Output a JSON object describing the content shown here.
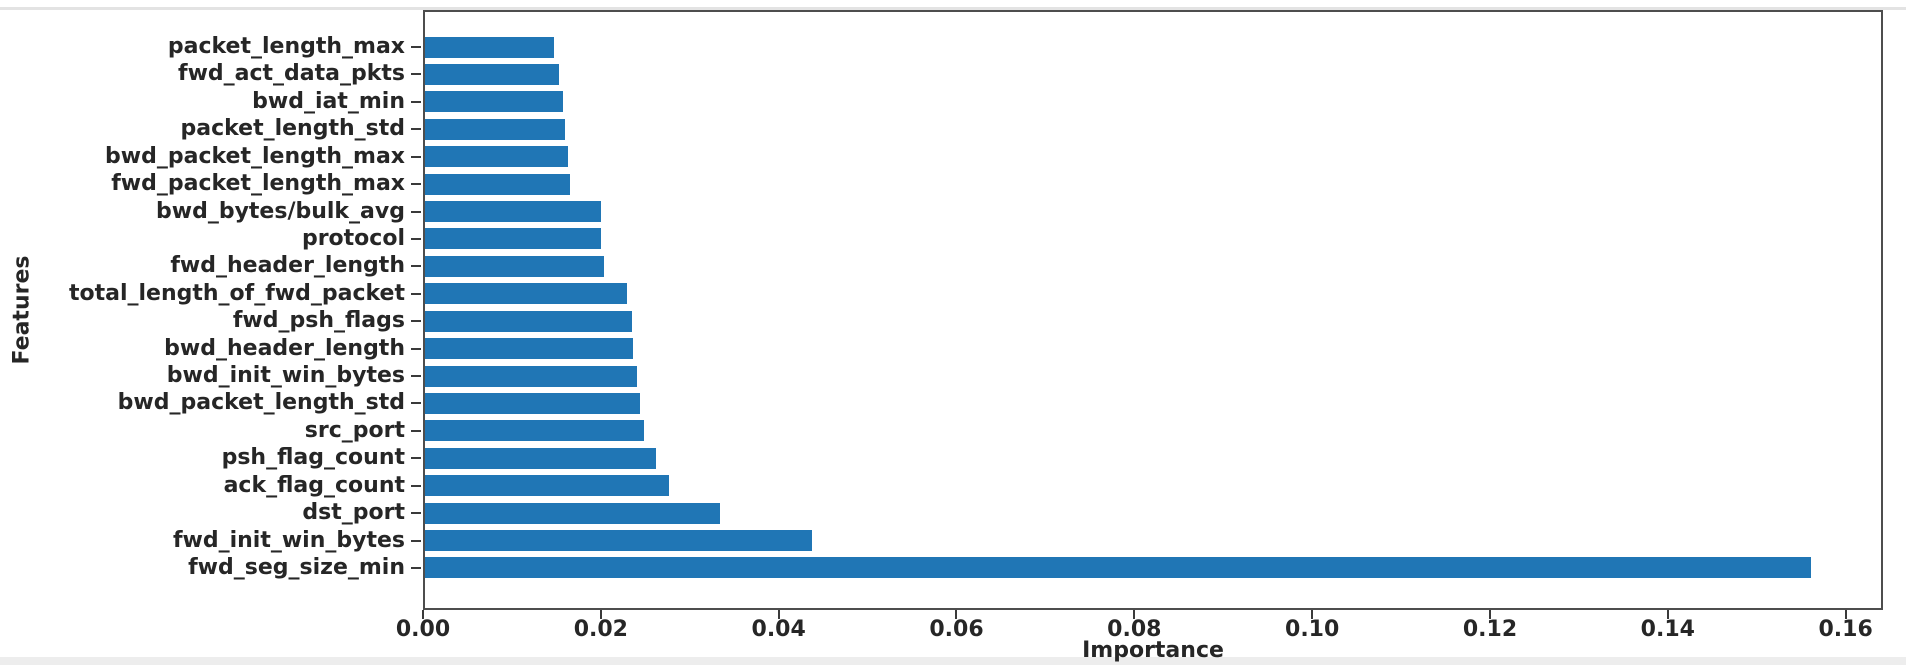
{
  "chart_data": {
    "type": "bar",
    "orientation": "horizontal",
    "xlabel": "Importance",
    "ylabel": "Features",
    "categories": [
      "packet_length_max",
      "fwd_act_data_pkts",
      "bwd_iat_min",
      "packet_length_std",
      "bwd_packet_length_max",
      "fwd_packet_length_max",
      "bwd_bytes/bulk_avg",
      "protocol",
      "fwd_header_length",
      "total_length_of_fwd_packet",
      "fwd_psh_flags",
      "bwd_header_length",
      "bwd_init_win_bytes",
      "bwd_packet_length_std",
      "src_port",
      "psh_flag_count",
      "ack_flag_count",
      "dst_port",
      "fwd_init_win_bytes",
      "fwd_seg_size_min"
    ],
    "values": [
      0.0146,
      0.0151,
      0.0156,
      0.0158,
      0.0161,
      0.0164,
      0.0198,
      0.0199,
      0.0202,
      0.0228,
      0.0233,
      0.0235,
      0.0239,
      0.0243,
      0.0247,
      0.0261,
      0.0275,
      0.0333,
      0.0436,
      0.1563
    ],
    "xlim": [
      0,
      0.1642
    ],
    "xticks": [
      {
        "value": 0.0,
        "label": "0.00"
      },
      {
        "value": 0.02,
        "label": "0.02"
      },
      {
        "value": 0.04,
        "label": "0.04"
      },
      {
        "value": 0.06,
        "label": "0.06"
      },
      {
        "value": 0.08,
        "label": "0.08"
      },
      {
        "value": 0.1,
        "label": "0.10"
      },
      {
        "value": 0.12,
        "label": "0.12"
      },
      {
        "value": 0.14,
        "label": "0.14"
      },
      {
        "value": 0.16,
        "label": "0.16"
      }
    ],
    "grid": false,
    "legend": null,
    "colors": {
      "bar": "#2076b5",
      "text": "#262626",
      "spine": "#4d4d4d",
      "tick": "#3a3a3a"
    }
  }
}
